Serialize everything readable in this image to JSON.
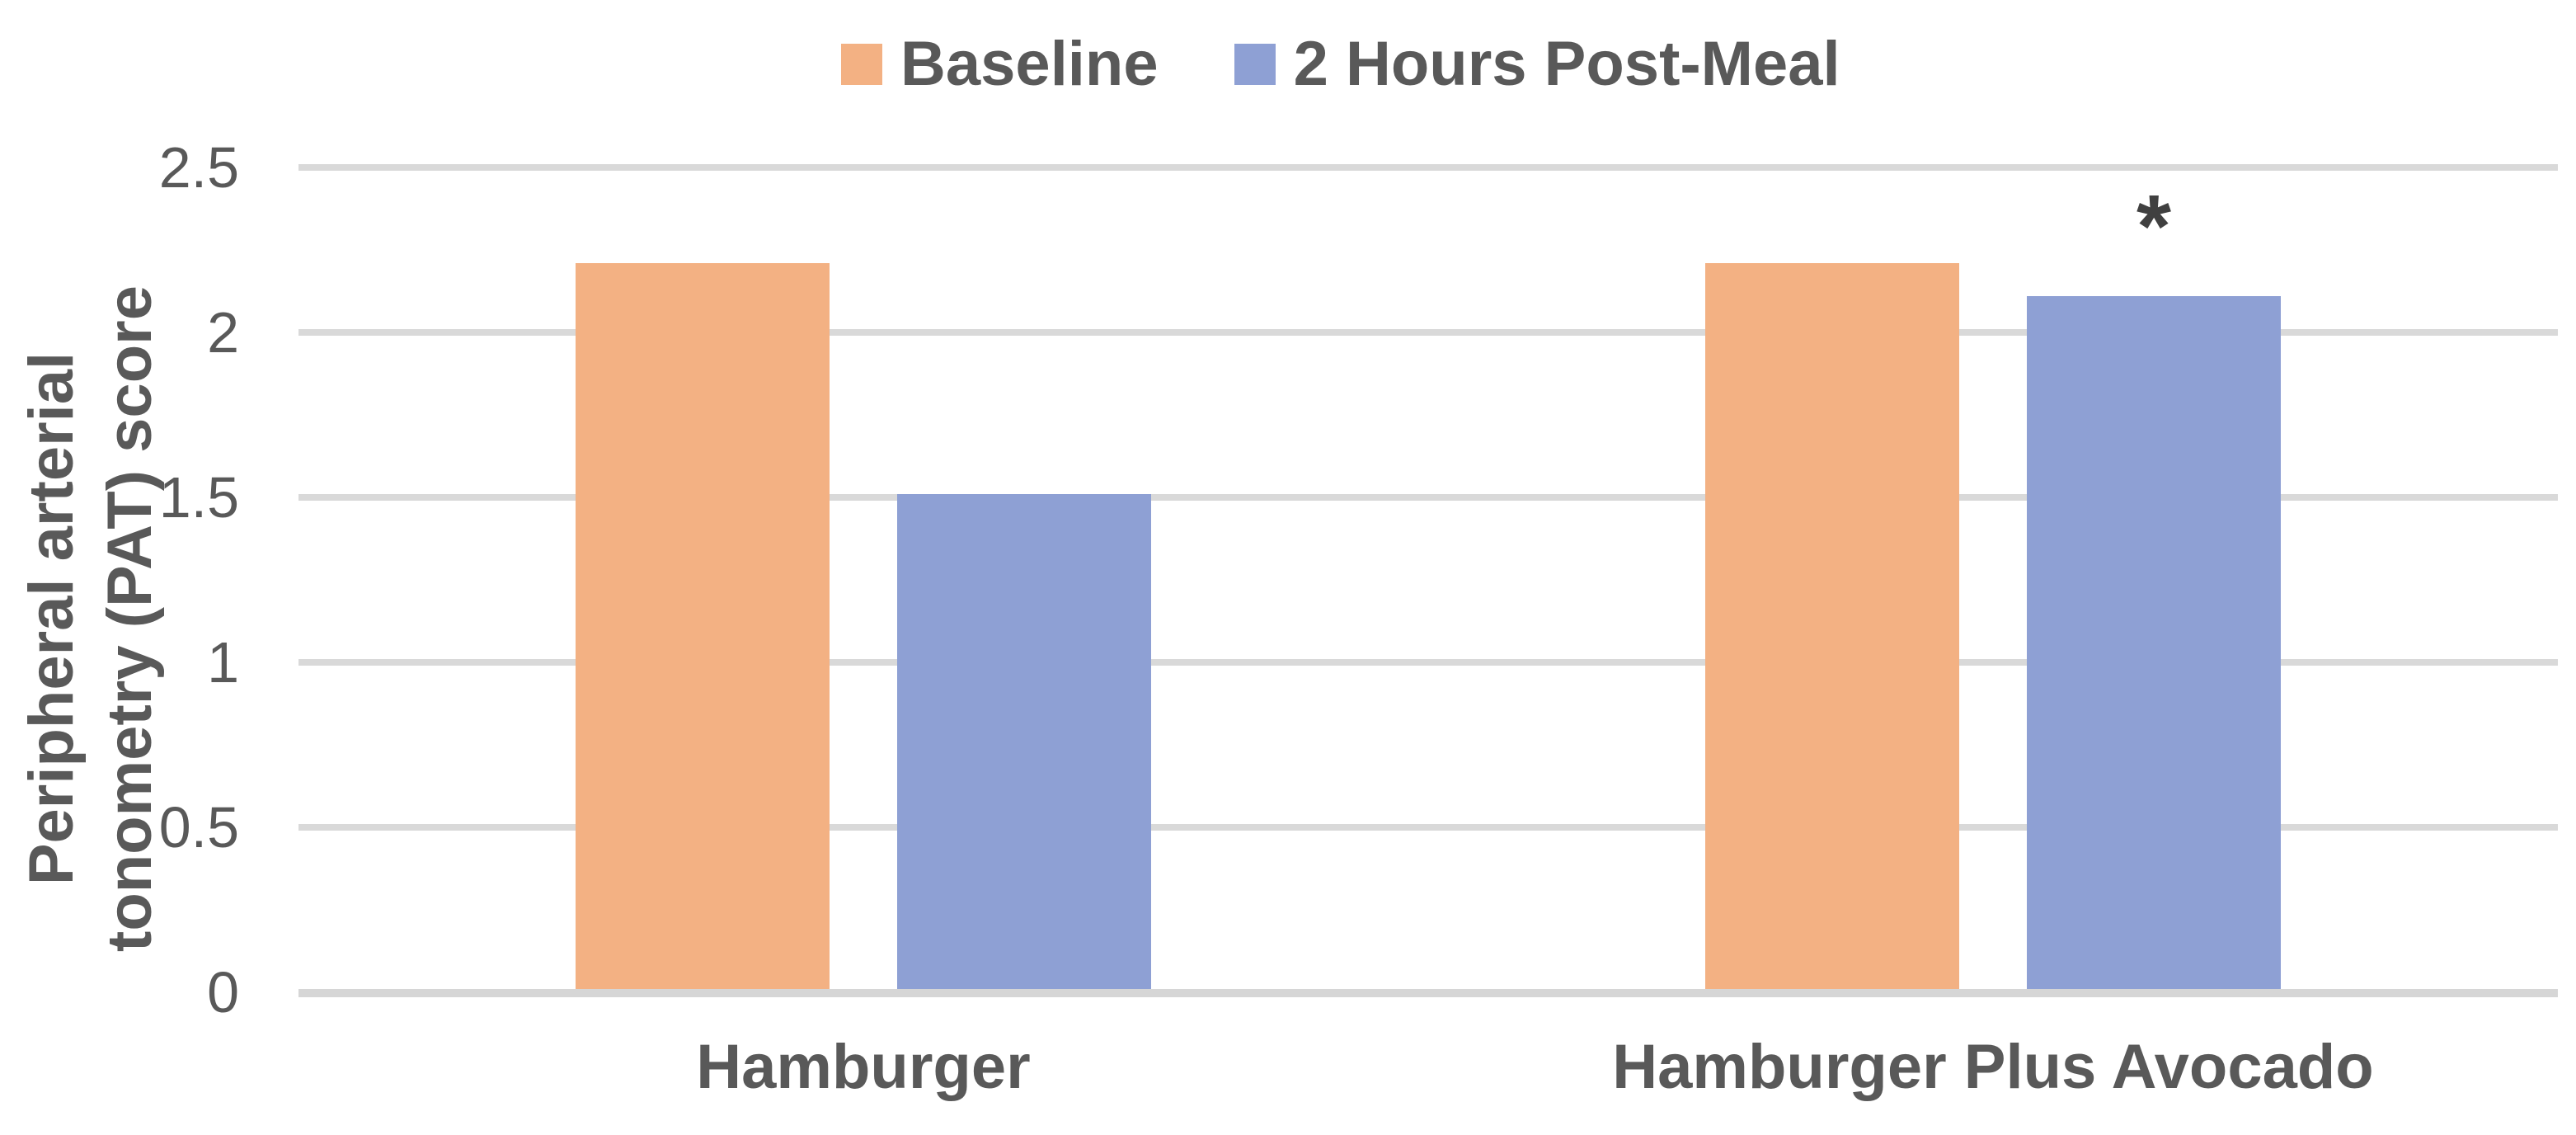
{
  "chart_data": {
    "type": "bar",
    "title": "",
    "categories": [
      "Hamburger",
      "Hamburger Plus Avocado"
    ],
    "series": [
      {
        "name": "Baseline",
        "color": "#F3B183",
        "values": [
          2.2,
          2.2
        ]
      },
      {
        "name": "2 Hours Post-Meal",
        "color": "#8EA0D4",
        "values": [
          1.5,
          2.1
        ]
      }
    ],
    "ylabel": "Peripheral arterial tonometry (PAT) score",
    "ylabel_lines": [
      "Peripheral arterial",
      "tonometry (PAT) score"
    ],
    "ylim": [
      0,
      2.5
    ],
    "yticks": [
      0,
      0.5,
      1,
      1.5,
      2,
      2.5
    ],
    "ytick_labels": [
      "0",
      "0.5",
      "1",
      "1.5",
      "2",
      "2.5"
    ],
    "grid": true,
    "legend_position": "top",
    "annotations": [
      {
        "text": "*",
        "category_index": 1,
        "series_index": 1
      }
    ]
  },
  "colors": {
    "axis_text": "#595959",
    "gridline": "#d9d9d9",
    "annotation_text": "#404040",
    "background": "#ffffff"
  }
}
